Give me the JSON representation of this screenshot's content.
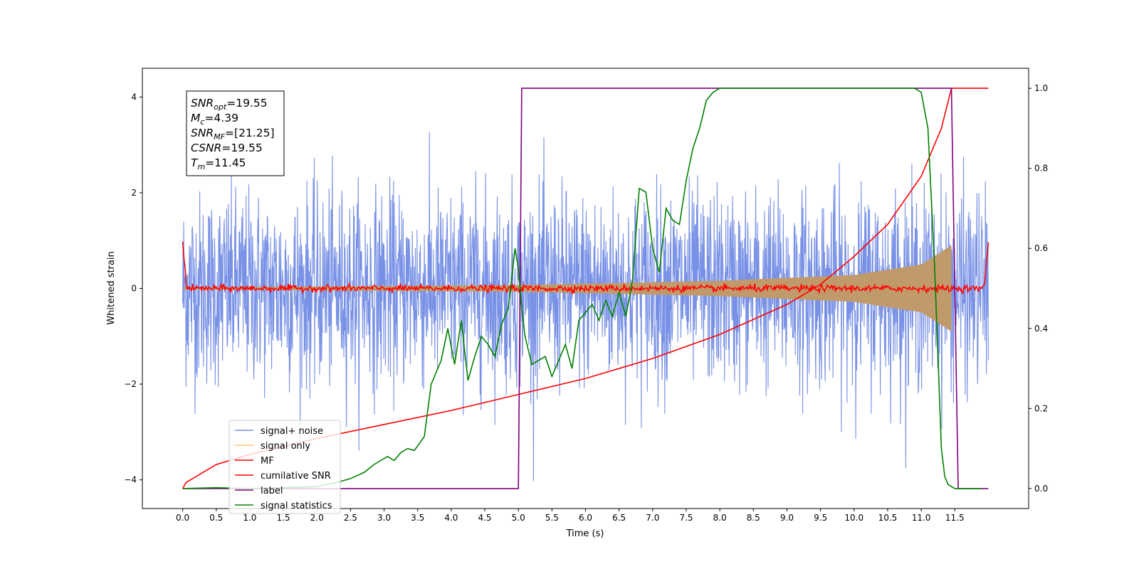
{
  "chart_data": {
    "type": "line",
    "xlabel": "Time (s)",
    "ylabel": "Whitened strain",
    "xlim": [
      -0.6,
      12.6
    ],
    "ylim_left": [
      -4.6,
      4.6
    ],
    "ylim_right": [
      -0.05,
      1.05
    ],
    "x_ticks": [
      "0.0",
      "0.5",
      "1.0",
      "1.5",
      "2.0",
      "2.5",
      "3.0",
      "3.5",
      "4.0",
      "4.5",
      "5.0",
      "5.5",
      "6.0",
      "6.5",
      "7.0",
      "7.5",
      "8.0",
      "8.5",
      "9.0",
      "9.5",
      "10.0",
      "10.5",
      "11.0",
      "11.5"
    ],
    "y_ticks_left": [
      "4",
      "2",
      "0",
      "−2",
      "−4"
    ],
    "y_ticks_right": [
      "1.0",
      "0.8",
      "0.6",
      "0.4",
      "0.2",
      "0.0"
    ],
    "annotation": [
      {
        "var": "SNR",
        "sub": "opt",
        "value": "=19.55"
      },
      {
        "var": "M",
        "sub": "c",
        "value": "=4.39"
      },
      {
        "var": "SNR",
        "sub": "MF",
        "value": "=[21.25]"
      },
      {
        "var": "CSNR",
        "sub": "",
        "value": "=19.55"
      },
      {
        "var": "T",
        "sub": "m",
        "value": "=11.45"
      }
    ],
    "legend": {
      "placement": "lower-left",
      "entries": [
        {
          "label": "signal+ noise",
          "color": "#7891e6"
        },
        {
          "label": "signal only",
          "color": "#ffc966"
        },
        {
          "label": "MF",
          "color": "#ff0000"
        },
        {
          "label": "cumilative SNR",
          "color": "#ff0000"
        },
        {
          "label": "label",
          "color": "#800080"
        },
        {
          "label": "signal statistics",
          "color": "#008000"
        }
      ]
    },
    "series": [
      {
        "name": "signal+ noise",
        "axis": "left",
        "color": "#7891e6",
        "kind": "noise",
        "x_range": [
          0.0,
          12.0
        ],
        "sigma": 1.0
      },
      {
        "name": "signal only",
        "axis": "left",
        "color": "#c19a6b",
        "kind": "chirp",
        "x_range": [
          0.0,
          11.45
        ],
        "envelope": [
          [
            0.0,
            0.02
          ],
          [
            5.0,
            0.07
          ],
          [
            8.0,
            0.16
          ],
          [
            10.0,
            0.28
          ],
          [
            11.0,
            0.5
          ],
          [
            11.45,
            0.9
          ]
        ]
      },
      {
        "name": "MF",
        "axis": "left",
        "color": "#ff0000",
        "kind": "mf",
        "x_range": [
          0.0,
          12.0
        ],
        "edge_value": 1.0
      },
      {
        "name": "cumilative SNR",
        "axis": "right",
        "color": "#ff0000",
        "x": [
          0.0,
          0.05,
          0.5,
          1.0,
          2.0,
          3.0,
          4.0,
          5.0,
          6.0,
          7.0,
          8.0,
          9.0,
          9.5,
          10.0,
          10.5,
          11.0,
          11.3,
          11.45,
          12.0
        ],
        "y": [
          0.0,
          0.015,
          0.06,
          0.085,
          0.125,
          0.16,
          0.195,
          0.235,
          0.275,
          0.325,
          0.385,
          0.46,
          0.51,
          0.58,
          0.66,
          0.78,
          0.9,
          1.0,
          1.0
        ]
      },
      {
        "name": "label",
        "axis": "right",
        "color": "#800080",
        "x": [
          0.0,
          5.0,
          5.05,
          11.45,
          11.55,
          12.0
        ],
        "y": [
          0.0,
          0.0,
          1.0,
          1.0,
          0.0,
          0.0
        ]
      },
      {
        "name": "signal statistics",
        "axis": "right",
        "color": "#008000",
        "x": [
          0.0,
          0.5,
          1.0,
          1.5,
          2.0,
          2.3,
          2.5,
          2.7,
          2.85,
          2.95,
          3.05,
          3.15,
          3.25,
          3.35,
          3.45,
          3.6,
          3.7,
          3.85,
          3.95,
          4.05,
          4.15,
          4.25,
          4.35,
          4.45,
          4.55,
          4.65,
          4.75,
          4.85,
          4.95,
          5.0,
          5.05,
          5.1,
          5.2,
          5.3,
          5.4,
          5.5,
          5.6,
          5.7,
          5.8,
          5.9,
          6.0,
          6.1,
          6.2,
          6.3,
          6.4,
          6.5,
          6.6,
          6.7,
          6.8,
          6.9,
          7.0,
          7.1,
          7.2,
          7.3,
          7.4,
          7.5,
          7.6,
          7.7,
          7.8,
          7.9,
          8.0,
          8.2,
          8.5,
          9.0,
          9.5,
          10.0,
          10.5,
          10.9,
          11.0,
          11.1,
          11.2,
          11.3,
          11.35,
          11.4,
          11.5,
          11.9
        ],
        "y": [
          0.0,
          0.002,
          0.0,
          0.002,
          0.005,
          0.015,
          0.025,
          0.04,
          0.06,
          0.07,
          0.08,
          0.07,
          0.09,
          0.1,
          0.095,
          0.13,
          0.26,
          0.32,
          0.4,
          0.31,
          0.42,
          0.27,
          0.33,
          0.38,
          0.36,
          0.33,
          0.41,
          0.45,
          0.6,
          0.55,
          0.45,
          0.38,
          0.31,
          0.32,
          0.33,
          0.28,
          0.32,
          0.36,
          0.3,
          0.42,
          0.44,
          0.46,
          0.42,
          0.47,
          0.43,
          0.49,
          0.43,
          0.52,
          0.75,
          0.74,
          0.6,
          0.54,
          0.7,
          0.67,
          0.66,
          0.77,
          0.85,
          0.9,
          0.97,
          0.99,
          1.0,
          1.0,
          1.0,
          1.0,
          1.0,
          1.0,
          1.0,
          1.0,
          0.99,
          0.9,
          0.55,
          0.1,
          0.03,
          0.01,
          0.0,
          0.0
        ]
      }
    ]
  }
}
